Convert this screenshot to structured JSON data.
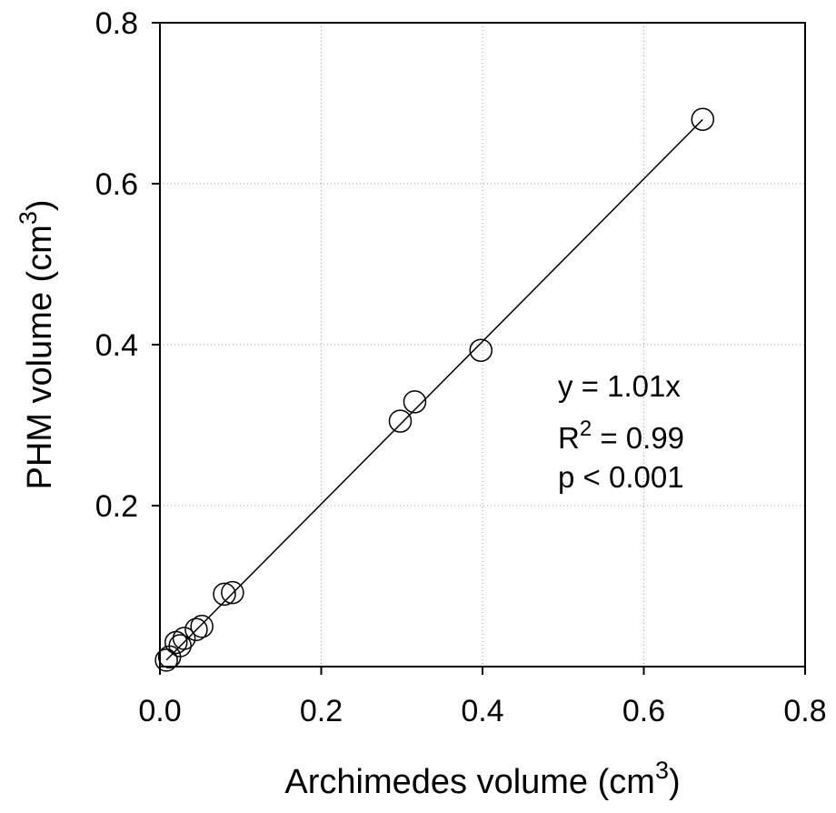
{
  "chart_data": {
    "type": "scatter",
    "title": "",
    "xlabel": {
      "text": "Archimedes volume (cm",
      "sup": "3",
      "close": ")"
    },
    "ylabel": {
      "text": "PHM volume (cm",
      "sup": "3",
      "close": ")"
    },
    "xlim": [
      0.0,
      0.8
    ],
    "ylim": [
      0.0,
      0.8
    ],
    "x_ticks": [
      0.0,
      0.2,
      0.4,
      0.6,
      0.8
    ],
    "x_tick_labels": [
      "0.0",
      "0.2",
      "0.4",
      "0.6",
      "0.8"
    ],
    "y_ticks": [
      0.2,
      0.4,
      0.6,
      0.8
    ],
    "y_tick_labels": [
      "0.2",
      "0.4",
      "0.6",
      "0.8"
    ],
    "grid": true,
    "grid_style": "dotted",
    "marker": "open-circle",
    "points": [
      {
        "x": 0.008,
        "y": 0.008
      },
      {
        "x": 0.012,
        "y": 0.012
      },
      {
        "x": 0.02,
        "y": 0.03
      },
      {
        "x": 0.025,
        "y": 0.026
      },
      {
        "x": 0.03,
        "y": 0.035
      },
      {
        "x": 0.045,
        "y": 0.046
      },
      {
        "x": 0.052,
        "y": 0.05
      },
      {
        "x": 0.08,
        "y": 0.09
      },
      {
        "x": 0.09,
        "y": 0.092
      },
      {
        "x": 0.298,
        "y": 0.305
      },
      {
        "x": 0.316,
        "y": 0.329
      },
      {
        "x": 0.398,
        "y": 0.393
      },
      {
        "x": 0.673,
        "y": 0.68
      }
    ],
    "fit_line": {
      "slope": 1.01,
      "x_range": [
        0.008,
        0.673
      ]
    },
    "annotation": {
      "equation": "y = 1.01x",
      "r2_prefix": "R",
      "r2_sup": "2",
      "r2_value": " = 0.99",
      "p_value": "p < 0.001"
    }
  }
}
